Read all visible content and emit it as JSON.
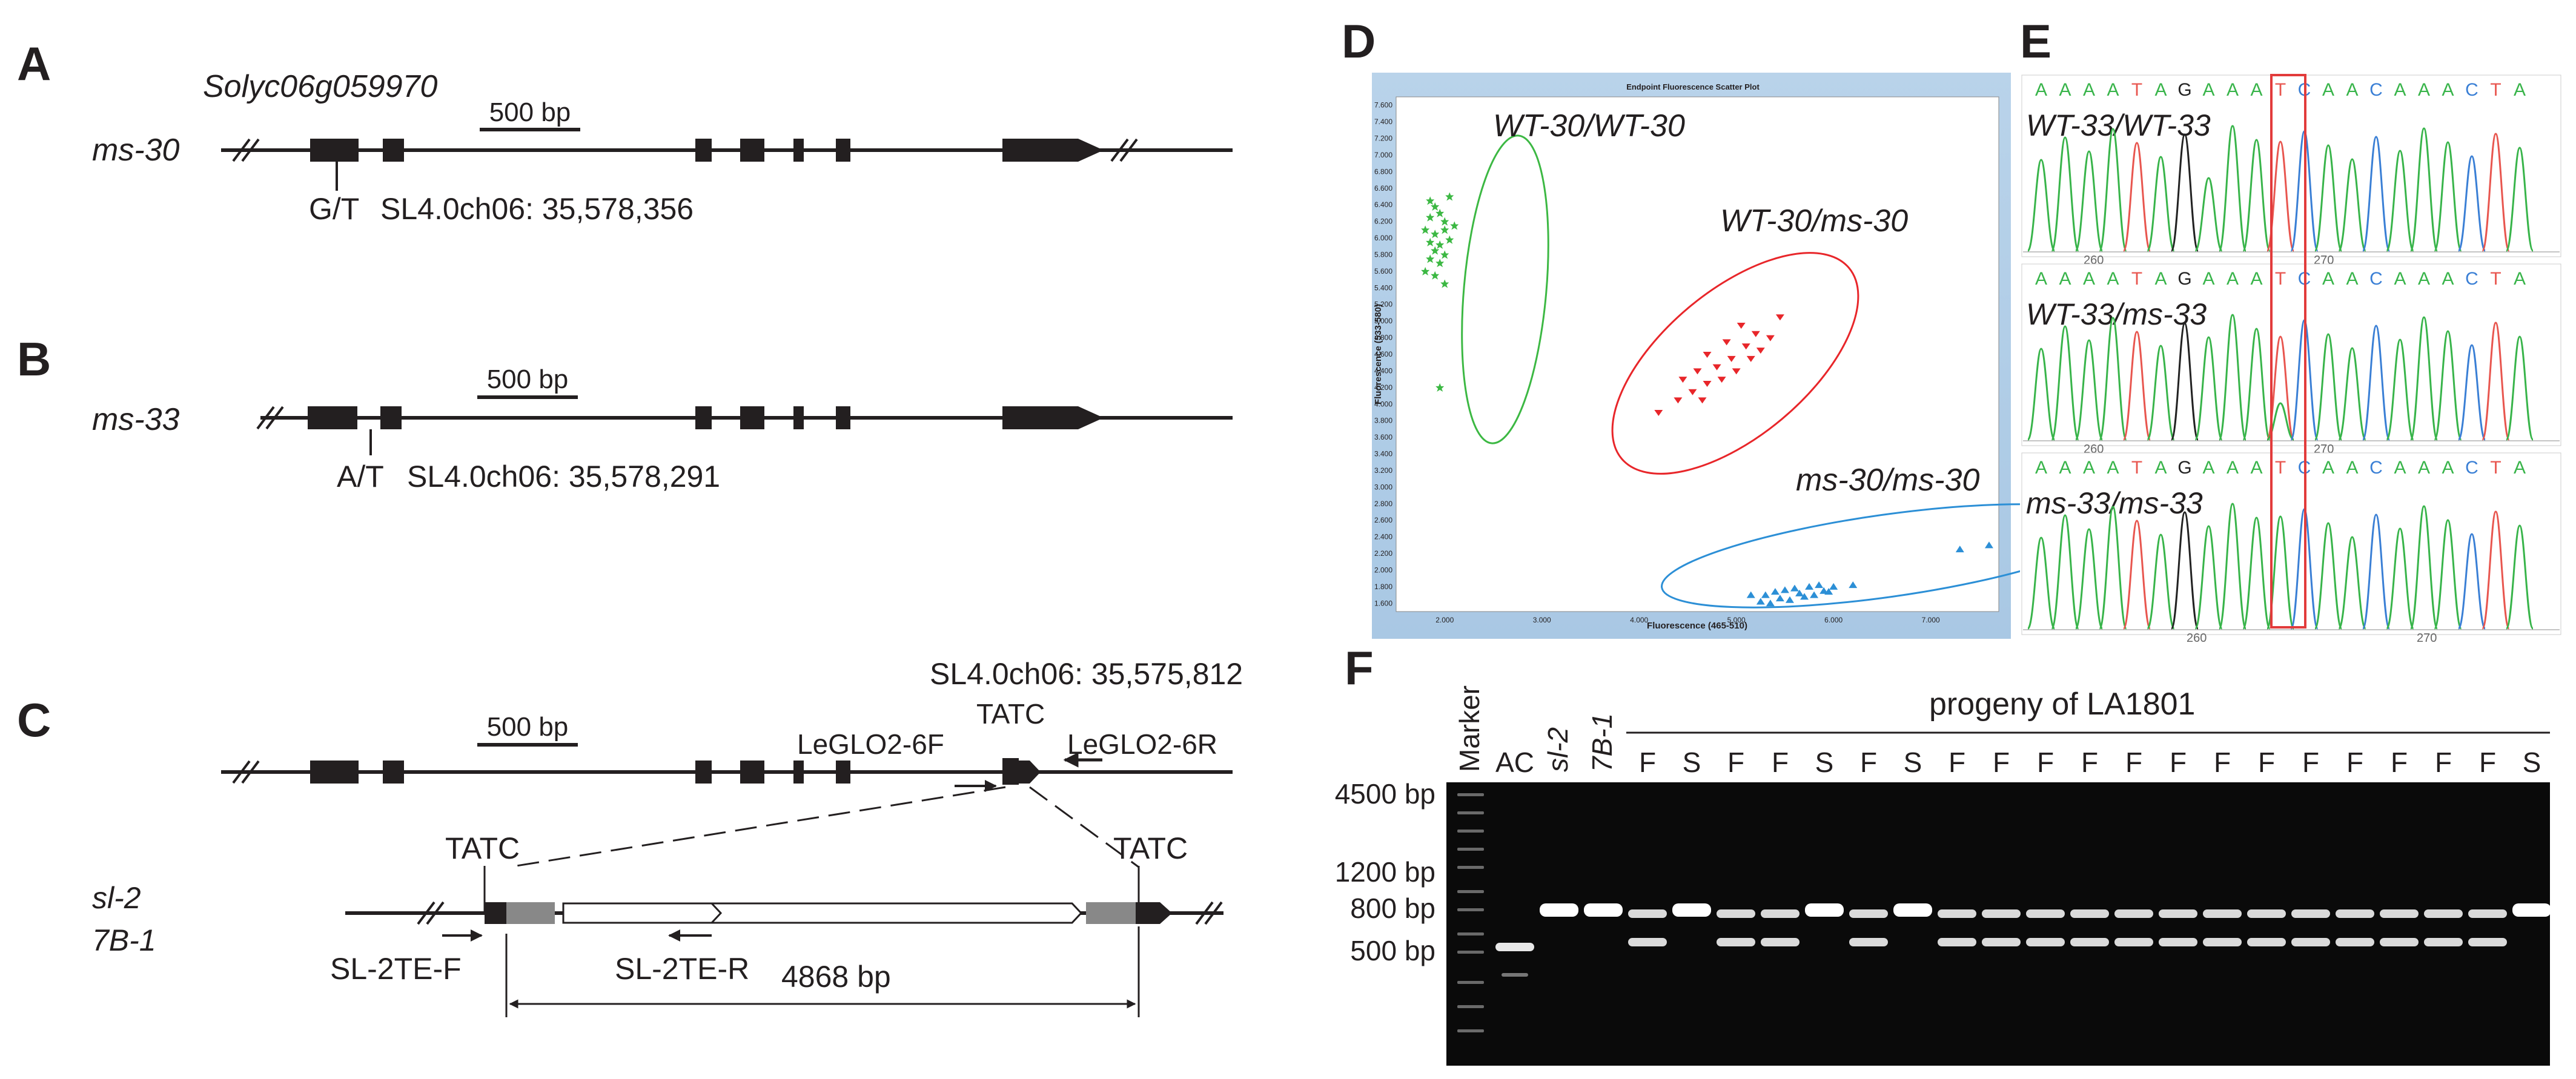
{
  "panels": {
    "A": {
      "letter": "A",
      "gene": "Solyc06g059970",
      "allele": "ms-30",
      "scale": "500 bp",
      "snp": "G/T",
      "position": "SL4.0ch06: 35,578,356"
    },
    "B": {
      "letter": "B",
      "allele": "ms-33",
      "scale": "500 bp",
      "snp": "A/T",
      "position": "SL4.0ch06: 35,578,291"
    },
    "C": {
      "letter": "C",
      "position": "SL4.0ch06: 35,575,812",
      "scale": "500 bp",
      "insert_site": "TATC",
      "primer_f": "LeGLO2-6F",
      "primer_r": "LeGLO2-6R",
      "tsd_left": "TATC",
      "tsd_right": "TATC",
      "allele1": "sl-2",
      "allele2": "7B-1",
      "te_primer_f": "SL-2TE-F",
      "te_primer_r": "SL-2TE-R",
      "te_length": "4868 bp"
    },
    "D": {
      "letter": "D",
      "plot_title": "Endpoint Fluorescence Scatter Plot",
      "xlabel": "Fluorescence (465-510)",
      "ylabel": "Fluorescence (533-580)",
      "x_ticks": [
        "2.000",
        "3.000",
        "4.000",
        "5.000",
        "6.000",
        "7.000"
      ],
      "y_ticks": [
        "1.600",
        "1.800",
        "2.000",
        "2.200",
        "2.400",
        "2.600",
        "2.800",
        "3.000",
        "3.200",
        "3.400",
        "3.600",
        "3.800",
        "4.000",
        "4.200",
        "4.400",
        "4.600",
        "4.800",
        "5.000",
        "5.200",
        "5.400",
        "5.600",
        "5.800",
        "6.000",
        "6.200",
        "6.400",
        "6.600",
        "6.800",
        "7.000",
        "7.200",
        "7.400",
        "7.600"
      ],
      "cluster_labels": [
        "WT-30/WT-30",
        "WT-30/ms-30",
        "ms-30/ms-30"
      ],
      "cluster_colors": [
        "#3cb843",
        "#e8262a",
        "#2c8fd6"
      ]
    },
    "E": {
      "letter": "E",
      "sequence": [
        "A",
        "A",
        "A",
        "A",
        "T",
        "A",
        "G",
        "A",
        "A",
        "A",
        "T",
        "C",
        "A",
        "A",
        "C",
        "A",
        "A",
        "A",
        "C",
        "T",
        "A"
      ],
      "rows": [
        {
          "label": "WT-33/WT-33",
          "tick_a": "260",
          "tick_b": "270"
        },
        {
          "label": "WT-33/ms-33",
          "tick_a": "260",
          "tick_b": "270"
        },
        {
          "label": "ms-33/ms-33",
          "tick_a": "260",
          "tick_b": "270"
        }
      ]
    },
    "F": {
      "letter": "F",
      "marker": "Marker",
      "controls": [
        "AC",
        "sl-2",
        "7B-1"
      ],
      "progeny_header": "progeny of LA1801",
      "progeny": [
        "F",
        "S",
        "F",
        "F",
        "S",
        "F",
        "S",
        "F",
        "F",
        "F",
        "F",
        "F",
        "F",
        "F",
        "F",
        "F",
        "F",
        "F",
        "F",
        "F",
        "S"
      ],
      "sizes": [
        "4500 bp",
        "1200 bp",
        "800 bp",
        "500 bp"
      ]
    }
  },
  "chart_data": {
    "type": "scatter",
    "title": "Endpoint Fluorescence Scatter Plot",
    "xlabel": "Fluorescence (465-510)",
    "ylabel": "Fluorescence (533-580)",
    "xlim": [
      1.5,
      7.7
    ],
    "ylim": [
      1.5,
      7.7
    ],
    "series": [
      {
        "name": "WT-30/WT-30",
        "color": "#3cb843",
        "points": [
          [
            1.85,
            6.45
          ],
          [
            1.9,
            6.38
          ],
          [
            2.05,
            6.5
          ],
          [
            1.85,
            6.25
          ],
          [
            1.95,
            6.3
          ],
          [
            2.0,
            6.2
          ],
          [
            1.8,
            6.1
          ],
          [
            1.9,
            6.05
          ],
          [
            2.0,
            6.1
          ],
          [
            2.1,
            6.15
          ],
          [
            1.85,
            5.95
          ],
          [
            1.95,
            5.92
          ],
          [
            2.05,
            5.98
          ],
          [
            1.9,
            5.85
          ],
          [
            2.0,
            5.8
          ],
          [
            1.85,
            5.75
          ],
          [
            1.95,
            5.7
          ],
          [
            1.8,
            5.6
          ],
          [
            1.9,
            5.55
          ],
          [
            2.0,
            5.45
          ],
          [
            1.95,
            4.2
          ]
        ]
      },
      {
        "name": "WT-30/ms-30",
        "color": "#e8262a",
        "points": [
          [
            5.45,
            5.05
          ],
          [
            5.2,
            4.85
          ],
          [
            5.05,
            4.95
          ],
          [
            5.35,
            4.8
          ],
          [
            4.9,
            4.75
          ],
          [
            5.1,
            4.7
          ],
          [
            5.25,
            4.65
          ],
          [
            4.7,
            4.6
          ],
          [
            4.95,
            4.55
          ],
          [
            5.15,
            4.55
          ],
          [
            4.8,
            4.45
          ],
          [
            5.0,
            4.4
          ],
          [
            4.6,
            4.4
          ],
          [
            4.85,
            4.3
          ],
          [
            4.45,
            4.3
          ],
          [
            4.7,
            4.25
          ],
          [
            4.55,
            4.15
          ],
          [
            4.65,
            4.05
          ],
          [
            4.4,
            4.05
          ],
          [
            4.2,
            3.9
          ]
        ]
      },
      {
        "name": "ms-30/ms-30",
        "color": "#2c8fd6",
        "points": [
          [
            7.6,
            2.3
          ],
          [
            7.3,
            2.25
          ],
          [
            6.2,
            1.82
          ],
          [
            6.0,
            1.8
          ],
          [
            5.85,
            1.82
          ],
          [
            5.75,
            1.8
          ],
          [
            5.6,
            1.78
          ],
          [
            5.5,
            1.76
          ],
          [
            5.9,
            1.75
          ],
          [
            5.65,
            1.72
          ],
          [
            5.4,
            1.74
          ],
          [
            5.3,
            1.7
          ],
          [
            5.45,
            1.66
          ],
          [
            5.25,
            1.62
          ],
          [
            5.35,
            1.6
          ],
          [
            5.55,
            1.64
          ],
          [
            5.7,
            1.68
          ],
          [
            5.8,
            1.7
          ],
          [
            5.95,
            1.74
          ],
          [
            5.15,
            1.7
          ]
        ]
      }
    ]
  }
}
